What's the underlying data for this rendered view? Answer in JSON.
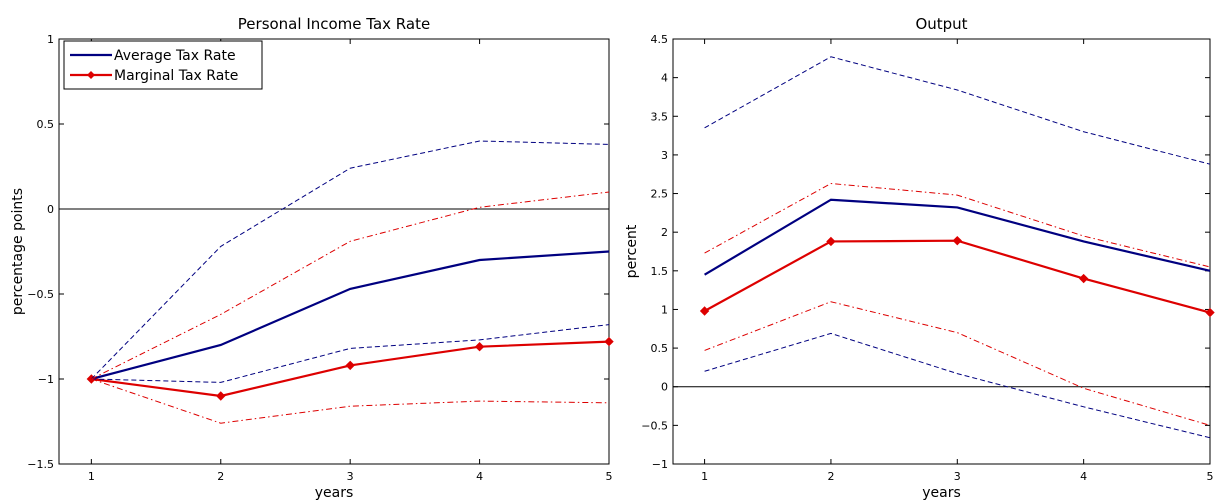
{
  "chart_data": [
    {
      "type": "line",
      "title": "Personal Income Tax Rate",
      "xlabel": "years",
      "ylabel": "percentage points",
      "xlim": [
        0.75,
        5
      ],
      "ylim": [
        -1.5,
        1
      ],
      "xticks": [
        1,
        2,
        3,
        4,
        5
      ],
      "yticks": [
        -1.5,
        -1,
        -0.5,
        0,
        0.5,
        1
      ],
      "ytick_labels": [
        "−1.5",
        "−1",
        "−0.5",
        "0",
        "0.5",
        "1"
      ],
      "xtick_labels": [
        "1",
        "2",
        "3",
        "4",
        "5"
      ],
      "zero_line": true,
      "legend_position": "top-left",
      "x": [
        1,
        2,
        3,
        4,
        5
      ],
      "series": [
        {
          "name": "Average Tax Rate",
          "color": "#000080",
          "style": "solid",
          "marker": "none",
          "legend": true,
          "values": [
            -1.0,
            -0.8,
            -0.47,
            -0.3,
            -0.25
          ]
        },
        {
          "name": "Marginal Tax Rate",
          "color": "#dd0000",
          "style": "solid",
          "marker": "diamond",
          "legend": true,
          "values": [
            -1.0,
            -1.1,
            -0.92,
            -0.81,
            -0.78
          ]
        },
        {
          "color": "#000080",
          "style": "dashed",
          "values": [
            -1.0,
            -0.22,
            0.24,
            0.4,
            0.38
          ]
        },
        {
          "color": "#000080",
          "style": "dashed",
          "values": [
            -1.0,
            -1.02,
            -0.82,
            -0.77,
            -0.68
          ]
        },
        {
          "color": "#dd0000",
          "style": "dashdot",
          "values": [
            -1.0,
            -0.62,
            -0.19,
            0.01,
            0.1
          ]
        },
        {
          "color": "#dd0000",
          "style": "dashdot",
          "values": [
            -1.0,
            -1.26,
            -1.16,
            -1.13,
            -1.14
          ]
        }
      ]
    },
    {
      "type": "line",
      "title": "Output",
      "xlabel": "years",
      "ylabel": "percent",
      "xlim": [
        0.75,
        5
      ],
      "ylim": [
        -1,
        4.5
      ],
      "xticks": [
        1,
        2,
        3,
        4,
        5
      ],
      "yticks": [
        -1,
        -0.5,
        0,
        0.5,
        1,
        1.5,
        2,
        2.5,
        3,
        3.5,
        4,
        4.5
      ],
      "ytick_labels": [
        "−1",
        "−0.5",
        "0",
        "0.5",
        "1",
        "1.5",
        "2",
        "2.5",
        "3",
        "3.5",
        "4",
        "4.5"
      ],
      "xtick_labels": [
        "1",
        "2",
        "3",
        "4",
        "5"
      ],
      "zero_line": true,
      "x": [
        1,
        2,
        3,
        4,
        5
      ],
      "series": [
        {
          "color": "#000080",
          "style": "solid",
          "marker": "none",
          "values": [
            1.45,
            2.42,
            2.32,
            1.88,
            1.5
          ]
        },
        {
          "color": "#dd0000",
          "style": "solid",
          "marker": "diamond",
          "values": [
            0.98,
            1.88,
            1.89,
            1.4,
            0.96
          ]
        },
        {
          "color": "#000080",
          "style": "dashed",
          "values": [
            3.35,
            4.27,
            3.84,
            3.3,
            2.88
          ]
        },
        {
          "color": "#000080",
          "style": "dashed",
          "values": [
            0.2,
            0.69,
            0.17,
            -0.26,
            -0.66
          ]
        },
        {
          "color": "#dd0000",
          "style": "dashdot",
          "values": [
            1.73,
            2.63,
            2.48,
            1.95,
            1.55
          ]
        },
        {
          "color": "#dd0000",
          "style": "dashdot",
          "values": [
            0.47,
            1.1,
            0.7,
            -0.02,
            -0.5
          ]
        }
      ]
    }
  ]
}
